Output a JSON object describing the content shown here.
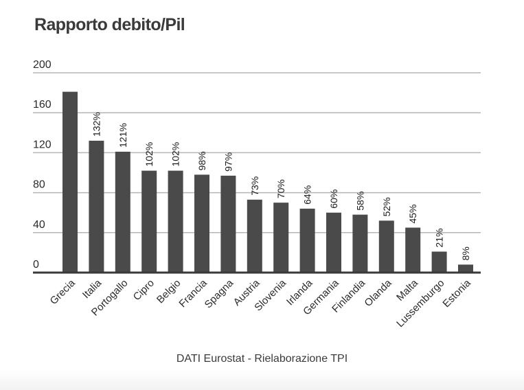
{
  "chart_data": {
    "type": "bar",
    "title": "Rapporto debito/Pil",
    "xlabel": "",
    "ylabel": "",
    "ylim": [
      0,
      200
    ],
    "yticks": [
      0,
      40,
      80,
      120,
      160,
      200
    ],
    "grid": true,
    "legend": "none",
    "bar_color": "#4a4a4a",
    "categories": [
      "Grecia",
      "Italia",
      "Portogallo",
      "Cipro",
      "Belgio",
      "Francia",
      "Spagna",
      "Austria",
      "Slovenia",
      "Irlanda",
      "Germania",
      "Finlandia",
      "Olanda",
      "Malta",
      "Lussemburgo",
      "Estonia"
    ],
    "values": [
      181,
      132,
      121,
      102,
      102,
      98,
      97,
      73,
      70,
      64,
      60,
      58,
      52,
      45,
      21,
      8
    ],
    "data_labels": [
      "",
      "132%",
      "121%",
      "102%",
      "102%",
      "98%",
      "97%",
      "73%",
      "70%",
      "64%",
      "60%",
      "58%",
      "52%",
      "45%",
      "21%",
      "8%"
    ],
    "source": "DATI Eurostat - Rielaborazione TPI"
  }
}
